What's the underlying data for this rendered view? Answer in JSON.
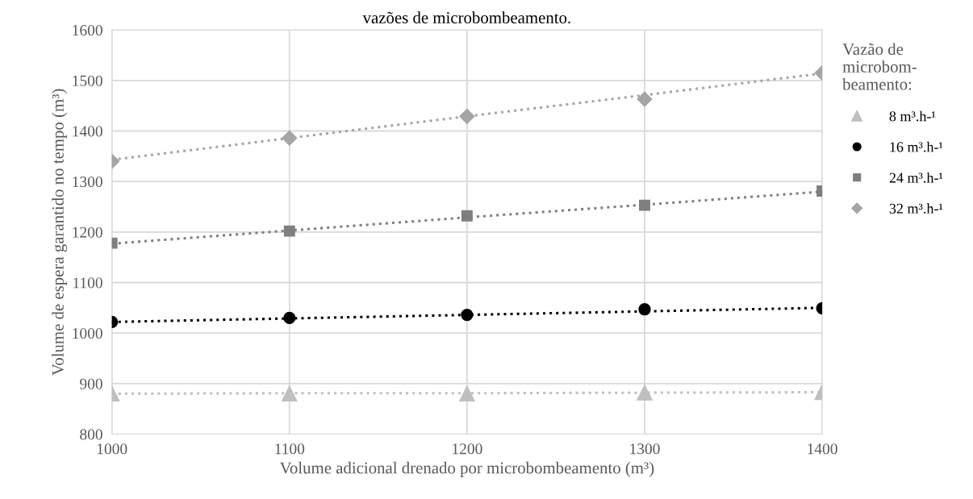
{
  "chart_data": {
    "type": "scatter",
    "title": "vazões de microbombeamento.",
    "xlabel": "Volume adicional drenado por microbombeamento (m³)",
    "ylabel": "Volume de espera garantido no tempo (m³)",
    "legend_title": "Vazão de\nmicrobom-\nbeamento:",
    "x": [
      1000,
      1100,
      1200,
      1300,
      1400
    ],
    "xlim": [
      1000,
      1400
    ],
    "xticks": [
      1000,
      1100,
      1200,
      1300,
      1400
    ],
    "ylim": [
      800,
      1600
    ],
    "yticks": [
      800,
      900,
      1000,
      1100,
      1200,
      1300,
      1400,
      1500,
      1600
    ],
    "grid": true,
    "legend": "right",
    "series": [
      {
        "name": "8 m³.h-¹",
        "marker": "triangle",
        "color": "#bfbfbf",
        "values": [
          880,
          880,
          880,
          882,
          883
        ]
      },
      {
        "name": "16 m³.h-¹",
        "marker": "circle",
        "color": "#000000",
        "values": [
          1022,
          1030,
          1036,
          1047,
          1049
        ]
      },
      {
        "name": "24 m³.h-¹",
        "marker": "square",
        "color": "#7f7f7f",
        "values": [
          1178,
          1202,
          1232,
          1253,
          1281
        ]
      },
      {
        "name": "32 m³.h-¹",
        "marker": "diamond",
        "color": "#a5a5a5",
        "values": [
          1340,
          1386,
          1429,
          1463,
          1515
        ]
      },
      {
        "type": "line",
        "line_style": "dotted",
        "color": "#bfbfbf",
        "values": [
          880,
          881,
          881,
          882,
          883
        ]
      },
      {
        "type": "line",
        "line_style": "dotted",
        "color": "#000000",
        "values": [
          1022,
          1029,
          1036,
          1043,
          1050
        ]
      },
      {
        "type": "line",
        "line_style": "dotted",
        "color": "#7f7f7f",
        "values": [
          1177,
          1203,
          1229,
          1254,
          1280
        ]
      },
      {
        "type": "line",
        "line_style": "dotted",
        "color": "#a5a5a5",
        "values": [
          1343,
          1386,
          1429,
          1471,
          1514
        ]
      }
    ]
  }
}
